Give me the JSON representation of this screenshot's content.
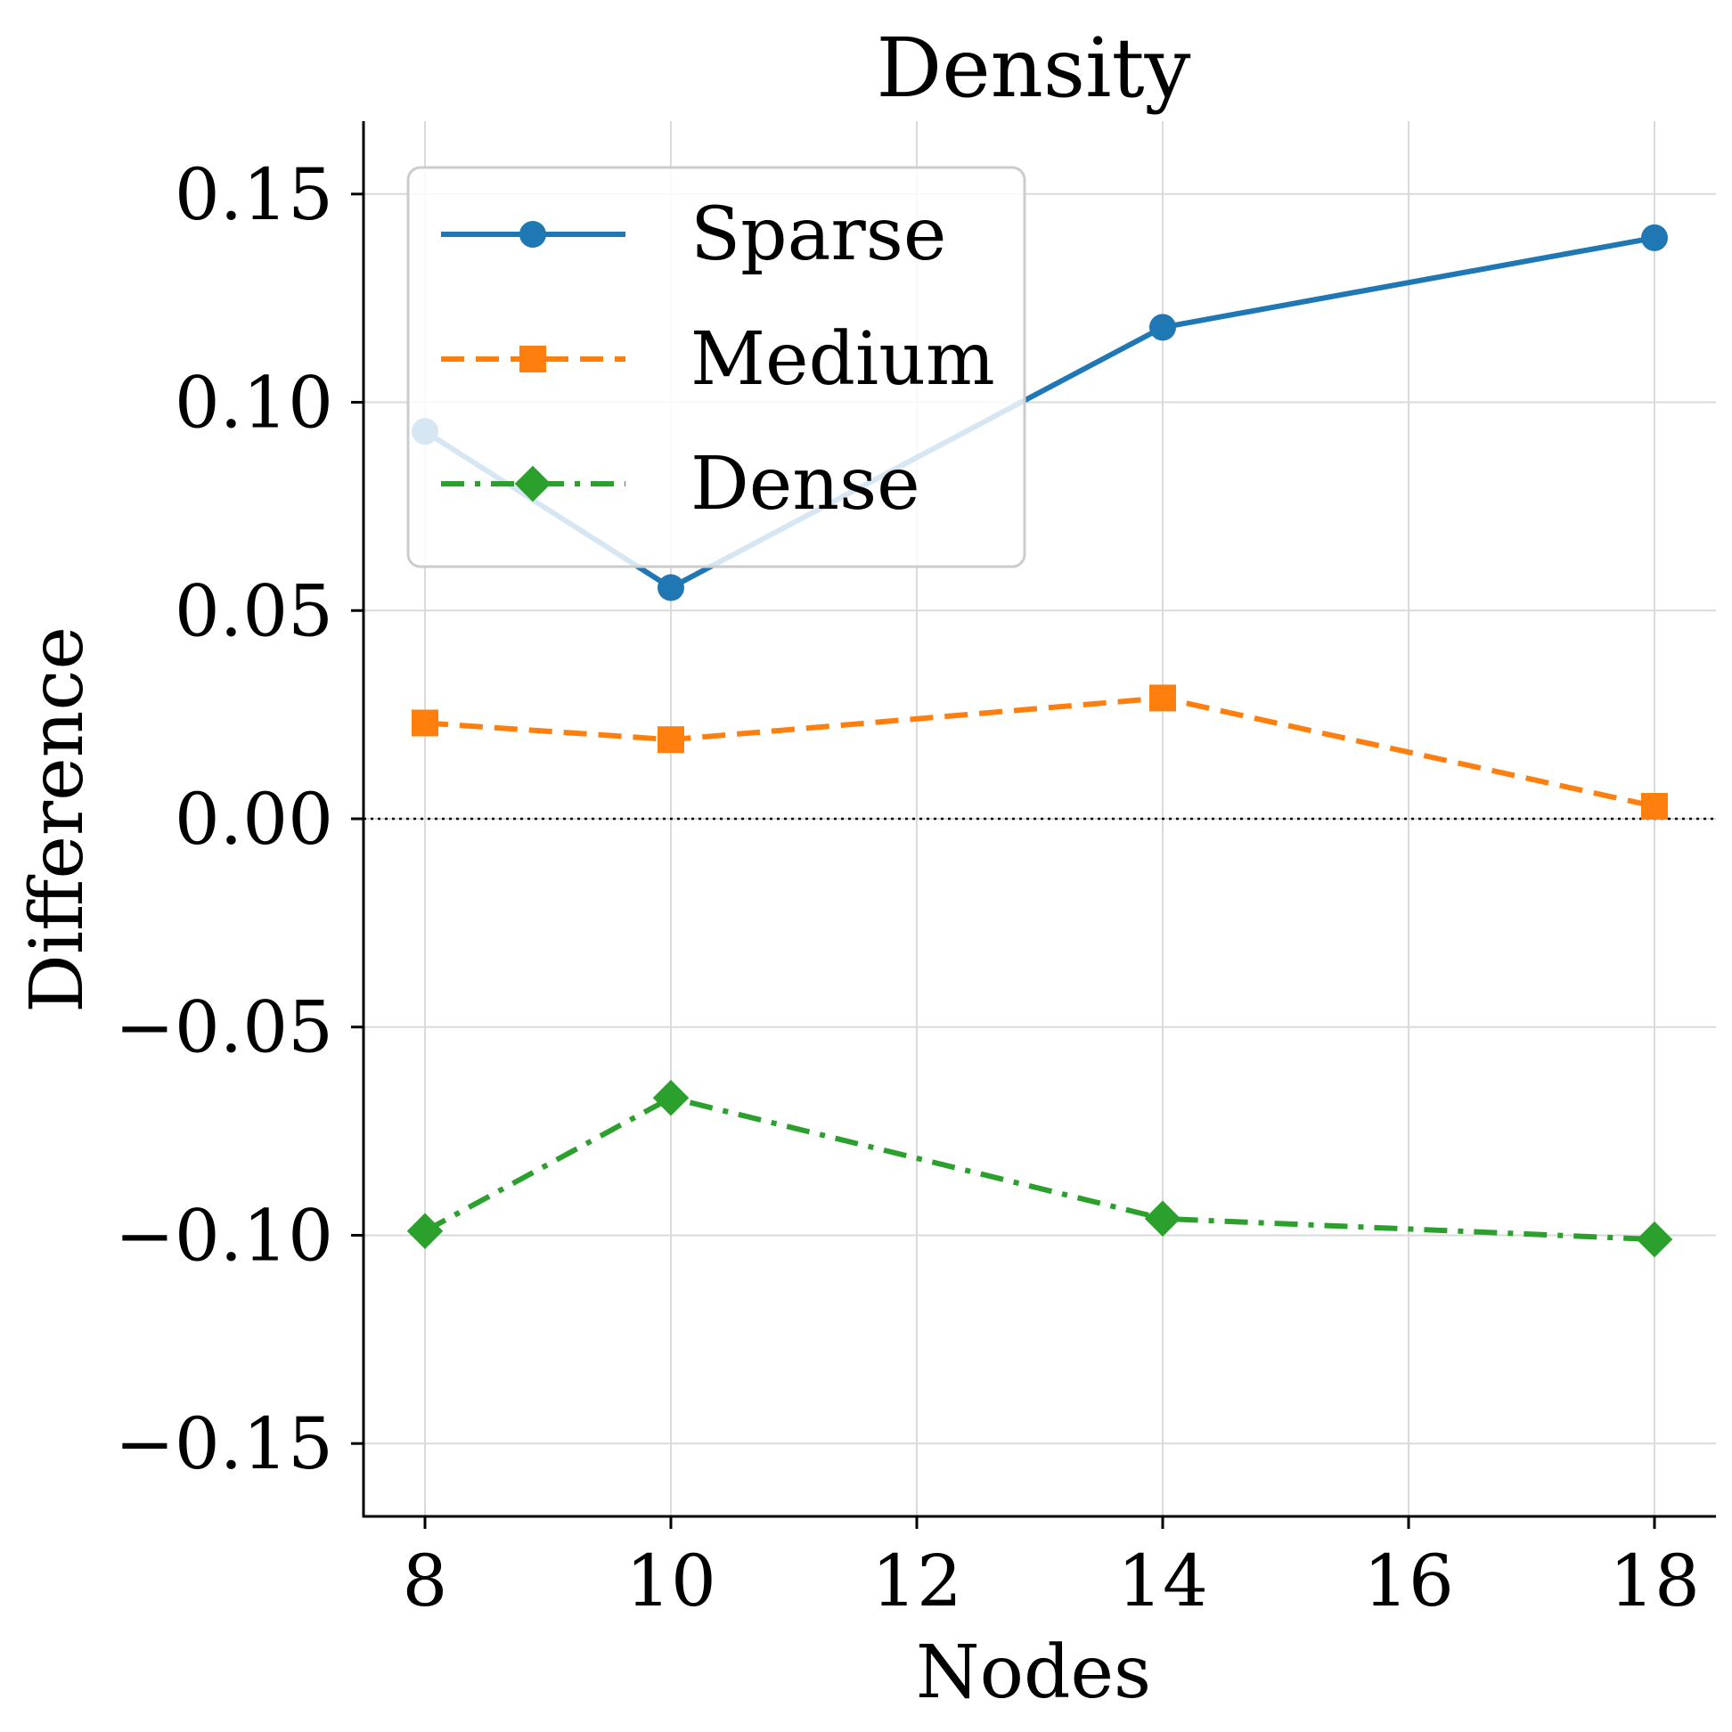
{
  "chart_data": {
    "type": "line",
    "title": "Density",
    "xlabel": "Nodes",
    "ylabel": "Difference",
    "x": [
      8,
      10,
      14,
      18
    ],
    "xlim": [
      7.5,
      18.5
    ],
    "ylim": [
      -0.1675,
      0.1675
    ],
    "xticks": [
      8,
      10,
      12,
      14,
      16,
      18
    ],
    "xtick_labels": [
      "8",
      "10",
      "12",
      "14",
      "16",
      "18"
    ],
    "yticks": [
      0.15,
      0.1,
      0.05,
      0.0,
      -0.05,
      -0.1,
      -0.15
    ],
    "ytick_labels": [
      "0.15",
      "0.10",
      "0.05",
      "0.00",
      "−0.05",
      "−0.10",
      "−0.15"
    ],
    "grid": true,
    "reference_line": {
      "y": 0,
      "style": "dotted",
      "color": "#000000"
    },
    "legend_position": "upper-left",
    "series": [
      {
        "name": "Sparse",
        "values": [
          0.093,
          0.0555,
          0.118,
          0.1395
        ],
        "color": "#1f77b4",
        "linestyle": "solid",
        "marker": "circle"
      },
      {
        "name": "Medium",
        "values": [
          0.023,
          0.019,
          0.029,
          0.003
        ],
        "color": "#ff7f0e",
        "linestyle": "dashed",
        "marker": "square"
      },
      {
        "name": "Dense",
        "values": [
          -0.099,
          -0.067,
          -0.096,
          -0.101
        ],
        "color": "#2ca02c",
        "linestyle": "dashdot",
        "marker": "diamond"
      }
    ]
  }
}
